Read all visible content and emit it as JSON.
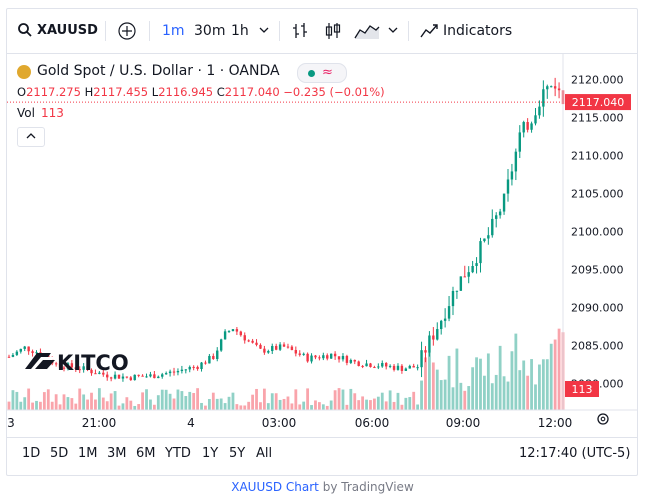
{
  "toolbar": {
    "symbol": "XAUUSD",
    "intervals": [
      "1m",
      "30m",
      "1h"
    ],
    "active_interval": "1m",
    "indicators_label": "Indicators"
  },
  "legend": {
    "title": "Gold Spot / U.S. Dollar · 1 · OANDA",
    "open_label": "O",
    "open": "2117.275",
    "high_label": "H",
    "high": "2117.455",
    "low_label": "L",
    "low": "2116.945",
    "close_label": "C",
    "close": "2117.040",
    "change": "−0.235 (−0.01%)",
    "vol_label": "Vol",
    "vol": "113"
  },
  "watermark": {
    "text": "KITCO"
  },
  "price_tag": "2117.040",
  "volume_tag": "113",
  "bottom": {
    "ranges": [
      "1D",
      "5D",
      "1M",
      "3M",
      "6M",
      "YTD",
      "1Y",
      "5Y",
      "All"
    ],
    "clock": "12:17:40 (UTC-5)"
  },
  "credit": {
    "link": "XAUUSD Chart",
    "by": "by TradingView"
  },
  "colors": {
    "up": "#089981",
    "down": "#f23645",
    "accent": "#2962ff"
  },
  "chart_data": {
    "type": "candlestick",
    "title": "Gold Spot / U.S. Dollar · 1 · OANDA",
    "y_ticks": [
      "2080.000",
      "2085.000",
      "2090.000",
      "2095.000",
      "2100.000",
      "2105.000",
      "2110.000",
      "2115.000",
      "2120.000"
    ],
    "y_tick_values": [
      2080,
      2085,
      2090,
      2095,
      2100,
      2105,
      2110,
      2115,
      2120
    ],
    "x_ticks": [
      "3",
      "21:00",
      "4",
      "03:00",
      "06:00",
      "09:00",
      "12:00"
    ],
    "ylim": [
      2076.5,
      2123.5
    ],
    "last_price": 2117.04,
    "series": [
      {
        "name": "price",
        "key_points": [
          [
            0,
            2083.5
          ],
          [
            4,
            2084.7
          ],
          [
            8,
            2084.0
          ],
          [
            12,
            2082.5
          ],
          [
            18,
            2082.0
          ],
          [
            24,
            2081.2
          ],
          [
            30,
            2080.8
          ],
          [
            36,
            2081.0
          ],
          [
            42,
            2081.5
          ],
          [
            48,
            2082.3
          ],
          [
            52,
            2083.5
          ],
          [
            55,
            2086.5
          ],
          [
            57,
            2087.3
          ],
          [
            60,
            2086.0
          ],
          [
            64,
            2084.3
          ],
          [
            70,
            2084.8
          ],
          [
            76,
            2083.3
          ],
          [
            82,
            2083.8
          ],
          [
            88,
            2082.8
          ],
          [
            94,
            2082.4
          ],
          [
            100,
            2082.0
          ],
          [
            104,
            2082.2
          ],
          [
            106,
            2084.5
          ],
          [
            110,
            2088.5
          ],
          [
            114,
            2093.0
          ],
          [
            118,
            2096.0
          ],
          [
            122,
            2099.5
          ],
          [
            126,
            2104.0
          ],
          [
            130,
            2112.5
          ],
          [
            133,
            2115.0
          ],
          [
            136,
            2118.5
          ],
          [
            139,
            2119.5
          ],
          [
            141,
            2117.0
          ]
        ]
      }
    ]
  }
}
